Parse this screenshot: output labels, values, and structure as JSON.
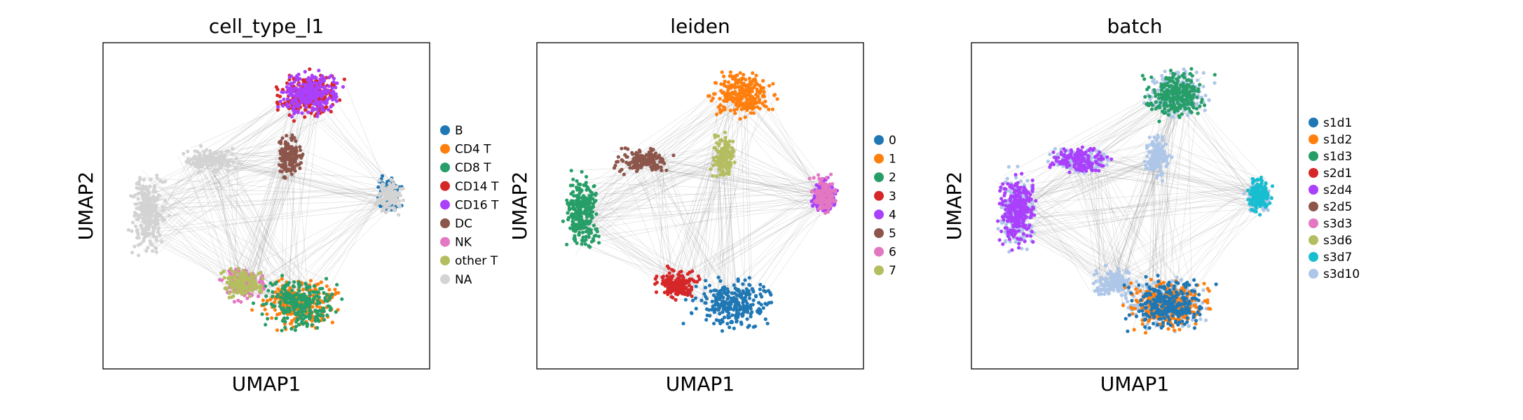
{
  "chart_data": [
    {
      "type": "scatter",
      "title": "cell_type_l1",
      "xlabel": "UMAP1",
      "ylabel": "UMAP2",
      "legend_placement": "right",
      "grid": false,
      "ticks": false,
      "series": [
        {
          "name": "B",
          "color": "#1f77b4"
        },
        {
          "name": "CD4 T",
          "color": "#ff7f0e"
        },
        {
          "name": "CD8 T",
          "color": "#279e68"
        },
        {
          "name": "CD14 T",
          "color": "#d62728"
        },
        {
          "name": "CD16 T",
          "color": "#aa40fc"
        },
        {
          "name": "DC",
          "color": "#8c564b"
        },
        {
          "name": "NK",
          "color": "#e377c2"
        },
        {
          "name": "other T",
          "color": "#b5bd61"
        },
        {
          "name": "NA",
          "color": "#d3d3d3"
        }
      ]
    },
    {
      "type": "scatter",
      "title": "leiden",
      "xlabel": "UMAP1",
      "ylabel": "UMAP2",
      "legend_placement": "right",
      "grid": false,
      "ticks": false,
      "series": [
        {
          "name": "0",
          "color": "#1f77b4"
        },
        {
          "name": "1",
          "color": "#ff7f0e"
        },
        {
          "name": "2",
          "color": "#279e68"
        },
        {
          "name": "3",
          "color": "#d62728"
        },
        {
          "name": "4",
          "color": "#aa40fc"
        },
        {
          "name": "5",
          "color": "#8c564b"
        },
        {
          "name": "6",
          "color": "#e377c2"
        },
        {
          "name": "7",
          "color": "#b5bd61"
        }
      ]
    },
    {
      "type": "scatter",
      "title": "batch",
      "xlabel": "UMAP1",
      "ylabel": "UMAP2",
      "legend_placement": "right",
      "grid": false,
      "ticks": false,
      "series": [
        {
          "name": "s1d1",
          "color": "#1f77b4"
        },
        {
          "name": "s1d2",
          "color": "#ff7f0e"
        },
        {
          "name": "s1d3",
          "color": "#279e68"
        },
        {
          "name": "s2d1",
          "color": "#d62728"
        },
        {
          "name": "s2d4",
          "color": "#aa40fc"
        },
        {
          "name": "s2d5",
          "color": "#8c564b"
        },
        {
          "name": "s3d3",
          "color": "#e377c2"
        },
        {
          "name": "s3d6",
          "color": "#b5bd61"
        },
        {
          "name": "s3d7",
          "color": "#17becf"
        },
        {
          "name": "s3d10",
          "color": "#aec7e8"
        }
      ]
    }
  ],
  "colors": {
    "edges": "#808080",
    "frame": "#000000"
  }
}
